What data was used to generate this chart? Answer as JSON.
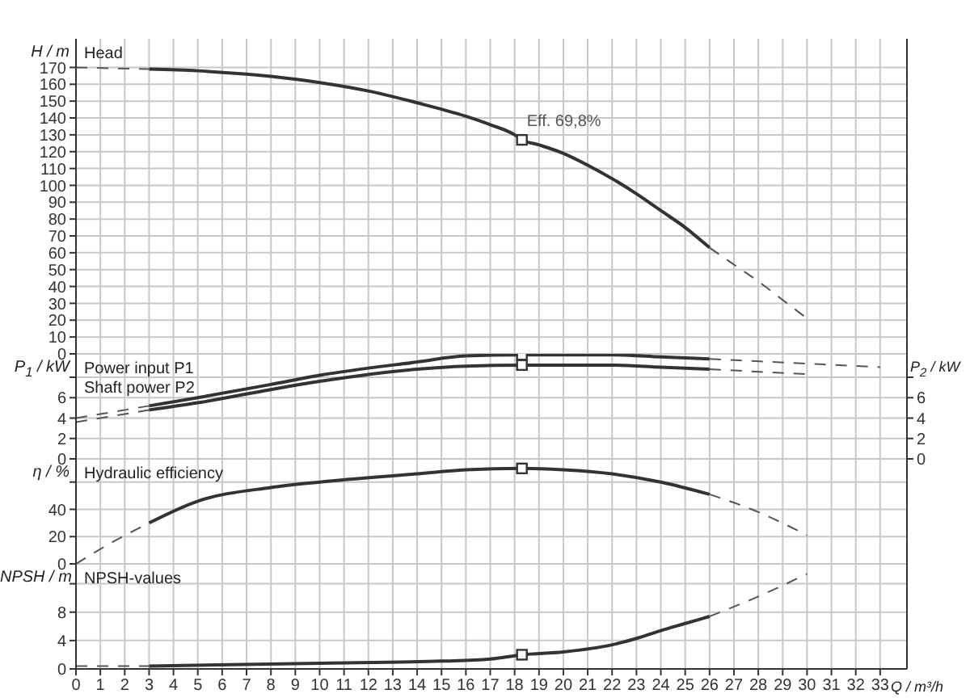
{
  "chart_data": [
    {
      "type": "line",
      "ylabel": "H / m",
      "annotations": [
        "Head",
        {
          "text": "Eff.  69,8%",
          "x": 18.3,
          "y": 127
        }
      ],
      "xlim": [
        0,
        34.1
      ],
      "xticks": [
        0,
        1,
        2,
        3,
        4,
        5,
        6,
        7,
        8,
        9,
        10,
        11,
        12,
        13,
        14,
        15,
        16,
        17,
        18,
        19,
        20,
        21,
        22,
        23,
        24,
        25,
        26,
        27,
        28,
        29,
        30,
        31,
        32,
        33
      ],
      "ylim": [
        0,
        187
      ],
      "yticks": [
        0,
        10,
        20,
        30,
        40,
        50,
        60,
        70,
        80,
        90,
        100,
        110,
        120,
        130,
        140,
        150,
        160,
        170
      ],
      "grid": true,
      "tick_labels": "y",
      "series": [
        {
          "color": "#333333",
          "line_style": "solid",
          "x": [
            3,
            5,
            7,
            9,
            10,
            12,
            14,
            16,
            17,
            18,
            18.3,
            19,
            20,
            21,
            22,
            23,
            24,
            25,
            26
          ],
          "values": [
            169,
            168,
            166,
            163,
            161,
            156,
            149,
            141,
            136,
            130,
            127,
            124,
            119,
            112,
            104,
            95,
            85,
            75,
            63
          ]
        },
        {
          "color": "#555555",
          "line_style": "dashed",
          "x": [
            0,
            3
          ],
          "values": [
            170,
            169
          ]
        },
        {
          "color": "#555555",
          "line_style": "dashed",
          "x": [
            26,
            27,
            28,
            29,
            30
          ],
          "values": [
            63,
            53,
            43,
            32,
            21
          ]
        },
        {
          "type": "scatter",
          "marker": "square",
          "color": "#333333",
          "x": [
            18.3
          ],
          "values": [
            127
          ]
        }
      ]
    },
    {
      "type": "line",
      "ylabel": "P$_{1}$ / kW",
      "y2label": "P$_{2}$ / kW",
      "annotations": [
        "Power input P1",
        "Shaft power P2"
      ],
      "xlim": [
        0,
        34.1
      ],
      "xticks": [
        0,
        1,
        2,
        3,
        4,
        5,
        6,
        7,
        8,
        9,
        10,
        11,
        12,
        13,
        14,
        15,
        16,
        17,
        18,
        19,
        20,
        21,
        22,
        23,
        24,
        25,
        26,
        27,
        28,
        29,
        30,
        31,
        32,
        33
      ],
      "ylim": [
        0,
        10.3
      ],
      "yticks": [
        0,
        2,
        4,
        6,
        {
          "value": 8,
          "label": null
        }
      ],
      "y2lim": [
        0,
        10.3
      ],
      "y2ticks": [
        0,
        2,
        4,
        6,
        {
          "value": 8,
          "label": null
        }
      ],
      "grid": true,
      "tick_labels": "y",
      "series": [
        {
          "color": "#333333",
          "line_style": "solid",
          "x": [
            3,
            5,
            8,
            10,
            14,
            16,
            18.3,
            22,
            24,
            26
          ],
          "values": [
            5.2,
            6.0,
            7.3,
            8.2,
            9.5,
            10.1,
            10.2,
            10.2,
            10.0,
            9.8
          ]
        },
        {
          "color": "#333333",
          "line_style": "solid",
          "x": [
            3,
            5,
            8,
            10,
            14,
            16,
            18.3,
            22,
            24,
            26
          ],
          "values": [
            4.8,
            5.5,
            6.8,
            7.6,
            8.8,
            9.1,
            9.2,
            9.2,
            9.0,
            8.8
          ]
        },
        {
          "color": "#555555",
          "line_style": "dashed",
          "x": [
            0,
            3
          ],
          "values": [
            4.0,
            5.2
          ]
        },
        {
          "color": "#555555",
          "line_style": "dashed",
          "x": [
            0,
            3
          ],
          "values": [
            3.6,
            4.8
          ]
        },
        {
          "color": "#555555",
          "line_style": "dashed",
          "x": [
            26,
            33
          ],
          "values": [
            9.8,
            9.0
          ]
        },
        {
          "color": "#555555",
          "line_style": "dashed",
          "x": [
            26,
            30
          ],
          "values": [
            8.8,
            8.3
          ]
        },
        {
          "type": "scatter",
          "marker": "square",
          "color": "#333333",
          "x": [
            18.3
          ],
          "values": [
            10.2
          ]
        },
        {
          "type": "scatter",
          "marker": "square",
          "color": "#333333",
          "x": [
            18.3
          ],
          "values": [
            9.2
          ]
        }
      ]
    },
    {
      "type": "line",
      "ylabel": "η / %",
      "annotations": [
        "Hydraulic efficiency"
      ],
      "xlim": [
        0,
        34.1
      ],
      "xticks": [
        0,
        1,
        2,
        3,
        4,
        5,
        6,
        7,
        8,
        9,
        10,
        11,
        12,
        13,
        14,
        15,
        16,
        17,
        18,
        19,
        20,
        21,
        22,
        23,
        24,
        25,
        26,
        27,
        28,
        29,
        30,
        31,
        32,
        33
      ],
      "ylim": [
        0,
        77
      ],
      "yticks": [
        0,
        20,
        40,
        {
          "value": 60,
          "label": null
        }
      ],
      "grid": true,
      "tick_labels": "y",
      "series": [
        {
          "color": "#333333",
          "line_style": "solid",
          "x": [
            3,
            5,
            8,
            10,
            14,
            16,
            18.3,
            20,
            22,
            24,
            26
          ],
          "values": [
            30,
            46,
            56,
            60,
            66,
            69,
            70,
            69,
            66,
            60,
            51
          ]
        },
        {
          "color": "#555555",
          "line_style": "dashed",
          "x": [
            0,
            1.5,
            3
          ],
          "values": [
            0,
            16,
            30
          ]
        },
        {
          "color": "#555555",
          "line_style": "dashed",
          "x": [
            26,
            28,
            30
          ],
          "values": [
            51,
            38,
            21
          ]
        },
        {
          "type": "scatter",
          "marker": "square",
          "color": "#333333",
          "x": [
            18.3
          ],
          "values": [
            70
          ]
        }
      ]
    },
    {
      "type": "line",
      "ylabel": "NPSH / m",
      "xlabel": "Q / m³/h",
      "annotations": [
        "NPSH-values"
      ],
      "xlim": [
        0,
        34.1
      ],
      "xticks": [
        0,
        1,
        2,
        3,
        4,
        5,
        6,
        7,
        8,
        9,
        10,
        11,
        12,
        13,
        14,
        15,
        16,
        17,
        18,
        19,
        20,
        21,
        22,
        23,
        24,
        25,
        26,
        27,
        28,
        29,
        30,
        31,
        32,
        33
      ],
      "ylim": [
        0,
        14.8
      ],
      "yticks": [
        0,
        4,
        8,
        {
          "value": 12,
          "label": null
        }
      ],
      "grid": true,
      "series": [
        {
          "color": "#333333",
          "line_style": "solid",
          "x": [
            3,
            10,
            15,
            17,
            18.3,
            20,
            22,
            23,
            24,
            25,
            26
          ],
          "values": [
            0.4,
            0.8,
            1.1,
            1.4,
            2.0,
            2.4,
            3.4,
            4.3,
            5.4,
            6.4,
            7.4
          ]
        },
        {
          "color": "#555555",
          "line_style": "dashed",
          "x": [
            0,
            3
          ],
          "values": [
            0.4,
            0.4
          ]
        },
        {
          "color": "#555555",
          "line_style": "dashed",
          "x": [
            26,
            28,
            30
          ],
          "values": [
            7.4,
            10.2,
            13.4
          ]
        },
        {
          "type": "scatter",
          "marker": "square",
          "color": "#333333",
          "x": [
            18.3
          ],
          "values": [
            2.0
          ]
        }
      ]
    }
  ]
}
